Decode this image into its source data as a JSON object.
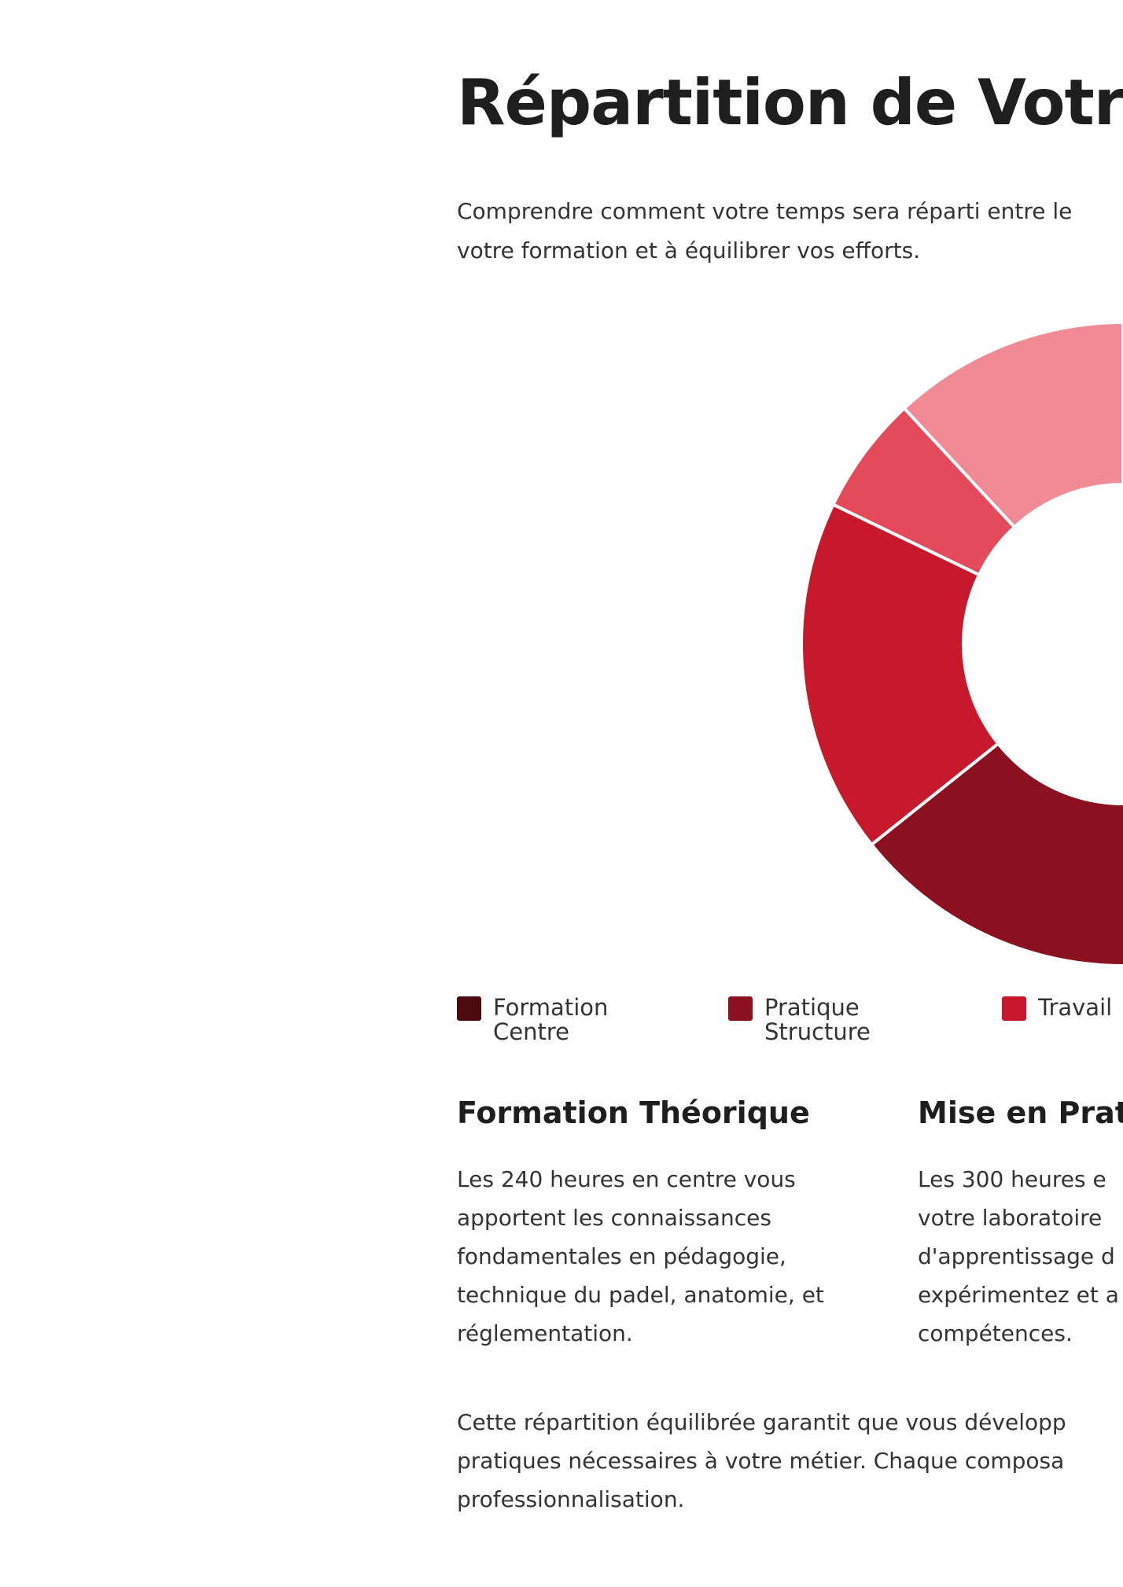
{
  "title": "Répartition de Votre",
  "subtitle_lines": [
    "Comprendre comment votre temps sera réparti entre le",
    "votre formation et à équilibrer vos efforts."
  ],
  "chart_data": {
    "type": "pie",
    "donut": true,
    "segments": [
      {
        "label": "Formation Centre",
        "value": 240,
        "color": "#4a0a10"
      },
      {
        "label": "Pratique Structure",
        "value": 300,
        "color": "#8b1020"
      },
      {
        "label": "Travail",
        "value": 150,
        "color": "#c8192c"
      },
      {
        "label": "",
        "value": 50,
        "color": "#e54a5a"
      },
      {
        "label": "",
        "value": 100,
        "color": "#f08a94"
      }
    ],
    "legend": "bottom"
  },
  "legend": [
    {
      "lines": [
        "Formation",
        "Centre"
      ],
      "color": "#4a0a10"
    },
    {
      "lines": [
        "Pratique",
        "Structure"
      ],
      "color": "#8b1020"
    },
    {
      "lines": [
        "Travail",
        ""
      ],
      "color": "#c8192c"
    }
  ],
  "sections": [
    {
      "heading": "Formation Théorique",
      "lines": [
        "Les 240 heures en centre vous",
        "apportent les connaissances",
        "fondamentales en pédagogie,",
        "technique du padel, anatomie, et",
        "réglementation."
      ]
    },
    {
      "heading": "Mise en Prati",
      "lines": [
        "Les 300 heures e",
        "votre laboratoire",
        "d'apprentissage d",
        "expérimentez et a",
        "compétences."
      ]
    }
  ],
  "conclusion_lines": [
    "Cette répartition équilibrée garantit que vous développ",
    "pratiques nécessaires à votre métier. Chaque composa",
    "professionnalisation."
  ]
}
